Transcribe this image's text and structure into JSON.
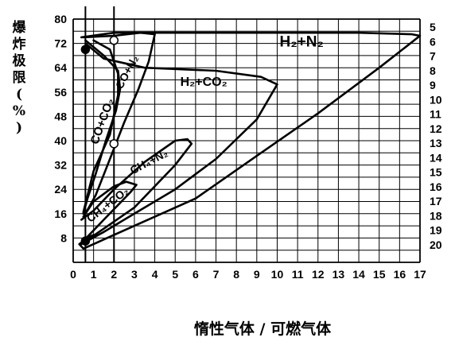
{
  "chart_data": {
    "type": "line",
    "ylabel": "爆炸极限(%)",
    "xlabel": "惰性气体 / 可燃气体",
    "x_ticks": [
      "0",
      "1",
      "2",
      "3",
      "4",
      "5",
      "6",
      "7",
      "8",
      "9",
      "10",
      "11",
      "12",
      "13",
      "14",
      "15",
      "16",
      "17"
    ],
    "y_ticks": [
      "8",
      "16",
      "24",
      "32",
      "40",
      "48",
      "56",
      "64",
      "72",
      "80"
    ],
    "right_ticks": [
      "5",
      "6",
      "7",
      "8",
      "9",
      "10",
      "11",
      "12",
      "13",
      "14",
      "15",
      "16",
      "17",
      "18",
      "19",
      "20"
    ],
    "xlim": [
      0,
      17
    ],
    "ylim": [
      0,
      80
    ],
    "grid": true,
    "series": [
      {
        "name": "H2+N2",
        "points": [
          [
            0.4,
            74
          ],
          [
            2,
            75.5
          ],
          [
            6,
            75.5
          ],
          [
            10,
            75.5
          ],
          [
            14,
            75.5
          ],
          [
            16.6,
            75
          ],
          [
            17,
            74.5
          ],
          [
            15,
            64
          ],
          [
            12,
            49
          ],
          [
            9,
            35
          ],
          [
            6,
            21
          ],
          [
            3,
            12
          ],
          [
            0.5,
            4.5
          ],
          [
            0.3,
            6
          ],
          [
            0.7,
            8
          ]
        ]
      },
      {
        "name": "H2+CO2",
        "points": [
          [
            0.6,
            72
          ],
          [
            1.5,
            67
          ],
          [
            3.5,
            64
          ],
          [
            7,
            63
          ],
          [
            9.2,
            61
          ],
          [
            10,
            58.5
          ],
          [
            9,
            47
          ],
          [
            7,
            34
          ],
          [
            5,
            24
          ],
          [
            3,
            16
          ],
          [
            1.5,
            10
          ],
          [
            0.4,
            6
          ],
          [
            0.5,
            7.5
          ],
          [
            1,
            9
          ]
        ]
      },
      {
        "name": "CO+N2",
        "points": [
          [
            0.5,
            74
          ],
          [
            2,
            74.5
          ],
          [
            3.3,
            75.5
          ],
          [
            4,
            75
          ],
          [
            3.7,
            66
          ],
          [
            3.2,
            57
          ],
          [
            2.5,
            46
          ],
          [
            1.8,
            34
          ],
          [
            1.1,
            22
          ],
          [
            0.6,
            16
          ],
          [
            0.5,
            16.5
          ],
          [
            1,
            30
          ],
          [
            1.8,
            42
          ],
          [
            2.2,
            55
          ],
          [
            2.2,
            62
          ],
          [
            1.8,
            70
          ],
          [
            1,
            73
          ]
        ]
      },
      {
        "name": "CO+CO2",
        "points": [
          [
            0.6,
            73
          ],
          [
            1.5,
            68
          ],
          [
            2.2,
            63
          ],
          [
            2.3,
            57
          ],
          [
            2.1,
            50
          ],
          [
            1.6,
            40
          ],
          [
            1.1,
            29
          ],
          [
            0.7,
            21
          ],
          [
            0.5,
            16
          ]
        ]
      },
      {
        "name": "CH4+N2",
        "points": [
          [
            0.4,
            6
          ],
          [
            3,
            18
          ],
          [
            5,
            32
          ],
          [
            5.8,
            39
          ],
          [
            5.6,
            40.5
          ],
          [
            5,
            40
          ],
          [
            3.5,
            33
          ],
          [
            2,
            24
          ],
          [
            1,
            17
          ],
          [
            0.4,
            14
          ]
        ]
      },
      {
        "name": "CH4+CO2",
        "points": [
          [
            0.5,
            7
          ],
          [
            1.5,
            14
          ],
          [
            2.8,
            23
          ],
          [
            3.1,
            25.5
          ],
          [
            2.6,
            26.5
          ],
          [
            2,
            25
          ],
          [
            1,
            20
          ],
          [
            0.5,
            15
          ]
        ]
      }
    ],
    "series_labels": [
      {
        "text": "H₂+N₂",
        "x": 11.2,
        "y": 71
      },
      {
        "text": "H₂+CO₂",
        "x": 6.4,
        "y": 58
      },
      {
        "text": "CO+N₂",
        "x": 2.8,
        "y": 62
      },
      {
        "text": "CO+CO₂",
        "x": 1.6,
        "y": 46
      },
      {
        "text": "CH₄+N₂",
        "x": 3.8,
        "y": 32
      },
      {
        "text": "CH₄+CO₂",
        "x": 1.8,
        "y": 18
      }
    ],
    "markers": [
      {
        "x": 0.6,
        "y": 70,
        "fill": "filled"
      },
      {
        "x": 0.6,
        "y": 7,
        "fill": "filled"
      },
      {
        "x": 2,
        "y": 73,
        "fill": "open"
      },
      {
        "x": 2,
        "y": 39,
        "fill": "open"
      }
    ],
    "reference_lines_x": [
      0.6,
      2
    ]
  }
}
